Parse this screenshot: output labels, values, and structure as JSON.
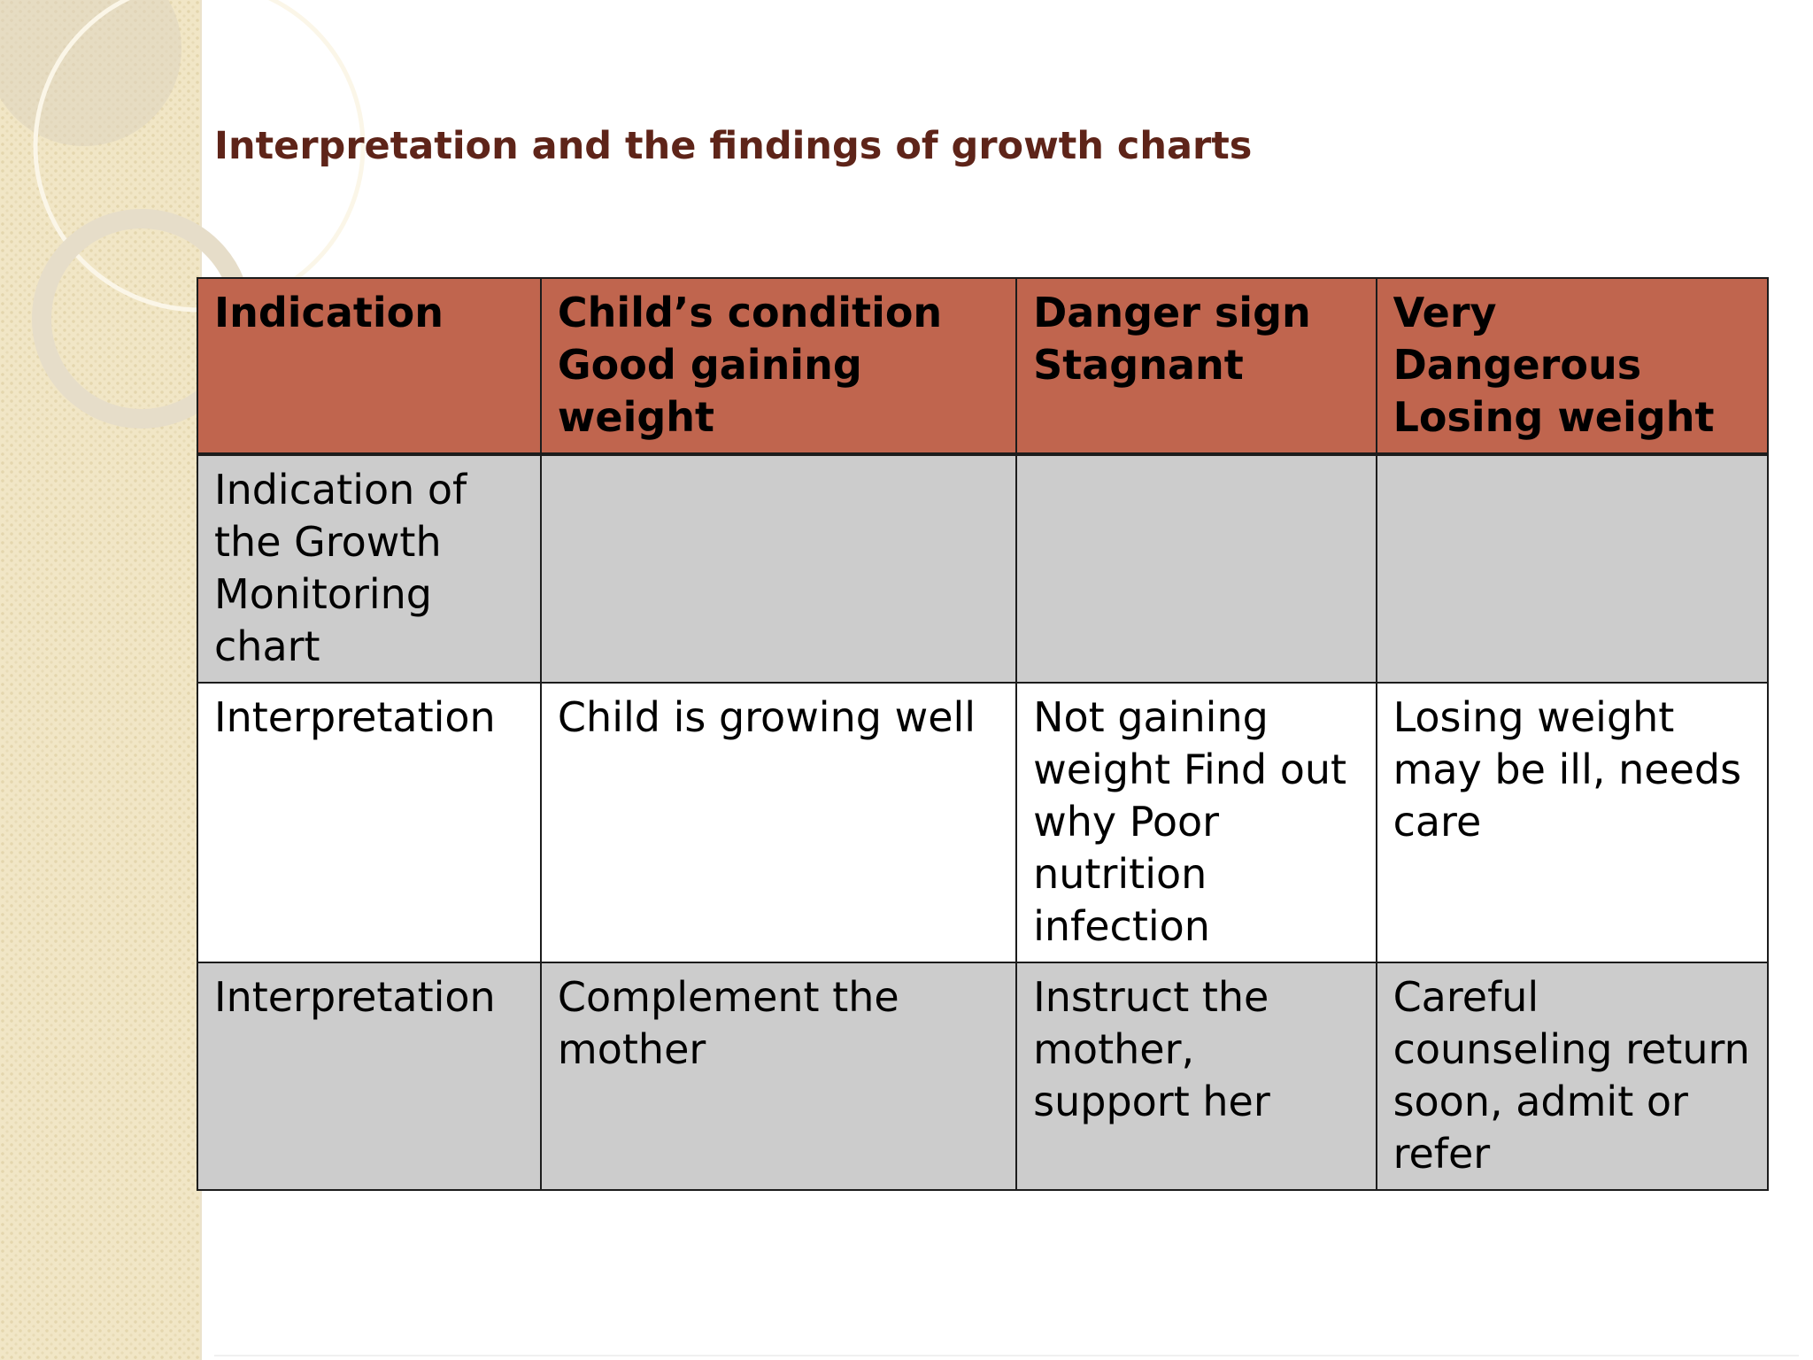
{
  "title": "Interpretation and the findings of growth charts",
  "table": {
    "headers": [
      "Indication",
      "Child’s condition Good gaining weight",
      "Danger sign Stagnant",
      "Very Dangerous Losing weight"
    ],
    "rows": [
      [
        "Indication of the Growth Monitoring chart",
        "",
        "",
        ""
      ],
      [
        "Interpretation",
        "Child is growing well",
        "Not gaining weight Find out why Poor nutrition infection",
        "Losing weight may be ill, needs care"
      ],
      [
        "Interpretation",
        "Complement the mother",
        "Instruct the mother, support her",
        "Careful counseling return soon, admit or refer"
      ]
    ]
  },
  "colors": {
    "header_fill": "#c0654e",
    "shaded_row_fill": "#cccccc",
    "title_color": "#5e2419",
    "side_panel": "#f1e6c6"
  }
}
